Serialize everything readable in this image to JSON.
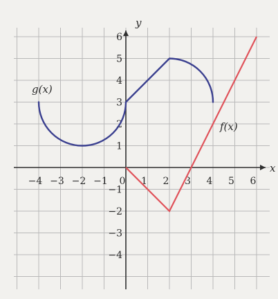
{
  "colors": {
    "background": "#f2f1ee",
    "grid": "#b9b9b9",
    "axis": "#2f2f2f",
    "g_curve": "#3a3f8f",
    "f_curve": "#e0525a"
  },
  "chart_data": {
    "type": "line",
    "title": "",
    "xlabel": "x",
    "ylabel": "y",
    "xlim": [
      -6,
      6
    ],
    "ylim": [
      -5,
      6
    ],
    "grid": true,
    "x_ticks": [
      -4,
      -3,
      -2,
      -1,
      0,
      1,
      2,
      3,
      4,
      5,
      6
    ],
    "x_tick_labels": [
      "−4",
      "−3",
      "−2",
      "−1",
      "0",
      "1",
      "2",
      "3",
      "4",
      "5",
      "6"
    ],
    "y_ticks": [
      -4,
      -3,
      -2,
      -1,
      1,
      2,
      3,
      4,
      5,
      6
    ],
    "y_tick_labels": [
      "−4",
      "−3",
      "−2",
      "−1",
      "1",
      "2",
      "3",
      "4",
      "5",
      "6"
    ],
    "series": [
      {
        "name": "g(x)",
        "pieces": [
          {
            "kind": "arc",
            "center": [
              -2,
              3
            ],
            "radius": 2,
            "from": [
              -4,
              3
            ],
            "to": [
              0,
              3
            ],
            "side": "lower"
          },
          {
            "kind": "segment",
            "from": [
              0,
              3
            ],
            "to": [
              2,
              5
            ]
          },
          {
            "kind": "arc",
            "center": [
              2,
              3
            ],
            "radius": 2,
            "from": [
              2,
              5
            ],
            "to": [
              4,
              3
            ],
            "side": "upper-right"
          }
        ],
        "label_anchor": [
          -4.2,
          3.3
        ]
      },
      {
        "name": "f(x)",
        "x": [
          0,
          2,
          6
        ],
        "y": [
          0,
          -2,
          6
        ],
        "label_anchor": [
          4.3,
          1.8
        ]
      }
    ]
  }
}
